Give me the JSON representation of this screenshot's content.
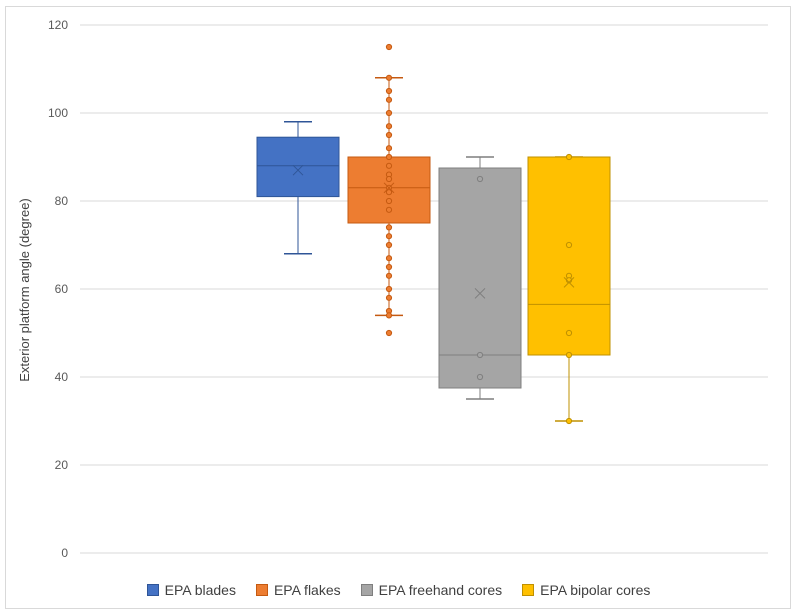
{
  "chart_data": {
    "type": "box",
    "ylabel": "Exterior platform angle (degree)",
    "ylim": [
      0,
      120
    ],
    "yticks": [
      0,
      20,
      40,
      60,
      80,
      100,
      120
    ],
    "grid": true,
    "legend_position": "bottom",
    "series": [
      {
        "name": "EPA blades",
        "color": "#4472c4",
        "edge": "#2f5597",
        "whisker_low": 68,
        "q1": 81,
        "median": 88,
        "q3": 94.5,
        "whisker_high": 98,
        "mean": 87,
        "points": []
      },
      {
        "name": "EPA flakes",
        "color": "#ed7d31",
        "edge": "#c55a11",
        "whisker_low": 54,
        "q1": 75,
        "median": 83,
        "q3": 90,
        "whisker_high": 108,
        "mean": 83,
        "points": [
          115,
          108,
          105,
          103,
          100,
          97,
          95,
          92,
          90,
          88,
          86,
          85,
          83,
          82,
          80,
          78,
          74,
          72,
          70,
          67,
          65,
          63,
          60,
          58,
          55,
          54,
          50
        ]
      },
      {
        "name": "EPA freehand cores",
        "color": "#a5a5a5",
        "edge": "#7f7f7f",
        "whisker_low": 35,
        "q1": 37.5,
        "median": 45,
        "q3": 87.5,
        "whisker_high": 90,
        "mean": 59,
        "points": [
          85,
          45,
          40
        ]
      },
      {
        "name": "EPA bipolar cores",
        "color": "#ffc000",
        "edge": "#bf9000",
        "whisker_low": 30,
        "q1": 45,
        "median": 56.5,
        "q3": 90,
        "whisker_high": 90,
        "mean": 61.5,
        "points": [
          90,
          70,
          63,
          62,
          50,
          45,
          30
        ]
      }
    ]
  }
}
